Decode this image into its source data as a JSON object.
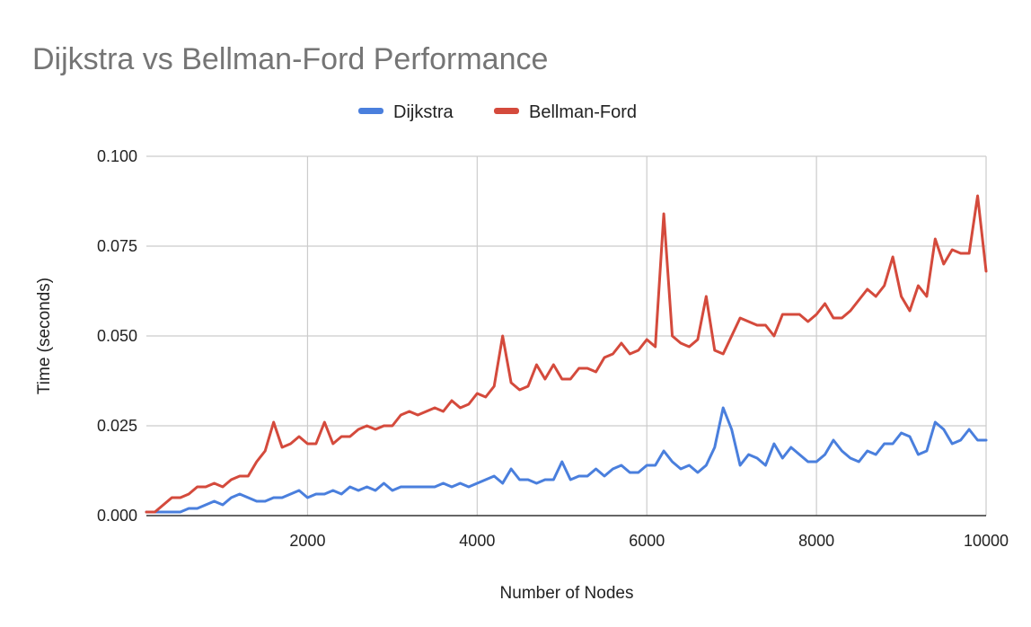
{
  "chart_data": {
    "type": "line",
    "title": "Dijkstra vs Bellman-Ford Performance",
    "xlabel": "Number of Nodes",
    "ylabel": "Time (seconds)",
    "xlim": [
      100,
      10000
    ],
    "ylim": [
      0,
      0.1
    ],
    "xticks": [
      2000,
      4000,
      6000,
      8000,
      10000
    ],
    "xtick_labels": [
      "2000",
      "4000",
      "6000",
      "8000",
      "10000"
    ],
    "yticks": [
      0,
      0.025,
      0.05,
      0.075,
      0.1
    ],
    "ytick_labels": [
      "0.000",
      "0.025",
      "0.050",
      "0.075",
      "0.100"
    ],
    "grid": true,
    "legend_position": "top-center",
    "x": [
      100,
      200,
      300,
      400,
      500,
      600,
      700,
      800,
      900,
      1000,
      1100,
      1200,
      1300,
      1400,
      1500,
      1600,
      1700,
      1800,
      1900,
      2000,
      2100,
      2200,
      2300,
      2400,
      2500,
      2600,
      2700,
      2800,
      2900,
      3000,
      3100,
      3200,
      3300,
      3400,
      3500,
      3600,
      3700,
      3800,
      3900,
      4000,
      4100,
      4200,
      4300,
      4400,
      4500,
      4600,
      4700,
      4800,
      4900,
      5000,
      5100,
      5200,
      5300,
      5400,
      5500,
      5600,
      5700,
      5800,
      5900,
      6000,
      6100,
      6200,
      6300,
      6400,
      6500,
      6600,
      6700,
      6800,
      6900,
      7000,
      7100,
      7200,
      7300,
      7400,
      7500,
      7600,
      7700,
      7800,
      7900,
      8000,
      8100,
      8200,
      8300,
      8400,
      8500,
      8600,
      8700,
      8800,
      8900,
      9000,
      9100,
      9200,
      9300,
      9400,
      9500,
      9600,
      9700,
      9800,
      9900,
      10000
    ],
    "series": [
      {
        "name": "Dijkstra",
        "color": "#4a7fdd",
        "values": [
          0.001,
          0.001,
          0.001,
          0.001,
          0.001,
          0.002,
          0.002,
          0.003,
          0.004,
          0.003,
          0.005,
          0.006,
          0.005,
          0.004,
          0.004,
          0.005,
          0.005,
          0.006,
          0.007,
          0.005,
          0.006,
          0.006,
          0.007,
          0.006,
          0.008,
          0.007,
          0.008,
          0.007,
          0.009,
          0.007,
          0.008,
          0.008,
          0.008,
          0.008,
          0.008,
          0.009,
          0.008,
          0.009,
          0.008,
          0.009,
          0.01,
          0.011,
          0.009,
          0.013,
          0.01,
          0.01,
          0.009,
          0.01,
          0.01,
          0.015,
          0.01,
          0.011,
          0.011,
          0.013,
          0.011,
          0.013,
          0.014,
          0.012,
          0.012,
          0.014,
          0.014,
          0.018,
          0.015,
          0.013,
          0.014,
          0.012,
          0.014,
          0.019,
          0.03,
          0.024,
          0.014,
          0.017,
          0.016,
          0.014,
          0.02,
          0.016,
          0.019,
          0.017,
          0.015,
          0.015,
          0.017,
          0.021,
          0.018,
          0.016,
          0.015,
          0.018,
          0.017,
          0.02,
          0.02,
          0.023,
          0.022,
          0.017,
          0.018,
          0.026,
          0.024,
          0.02,
          0.021,
          0.024,
          0.021,
          0.021
        ]
      },
      {
        "name": "Bellman-Ford",
        "color": "#d44a3c",
        "values": [
          0.001,
          0.001,
          0.003,
          0.005,
          0.005,
          0.006,
          0.008,
          0.008,
          0.009,
          0.008,
          0.01,
          0.011,
          0.011,
          0.015,
          0.018,
          0.026,
          0.019,
          0.02,
          0.022,
          0.02,
          0.02,
          0.026,
          0.02,
          0.022,
          0.022,
          0.024,
          0.025,
          0.024,
          0.025,
          0.025,
          0.028,
          0.029,
          0.028,
          0.029,
          0.03,
          0.029,
          0.032,
          0.03,
          0.031,
          0.034,
          0.033,
          0.036,
          0.05,
          0.037,
          0.035,
          0.036,
          0.042,
          0.038,
          0.042,
          0.038,
          0.038,
          0.041,
          0.041,
          0.04,
          0.044,
          0.045,
          0.048,
          0.045,
          0.046,
          0.049,
          0.047,
          0.084,
          0.05,
          0.048,
          0.047,
          0.049,
          0.061,
          0.046,
          0.045,
          0.05,
          0.055,
          0.054,
          0.053,
          0.053,
          0.05,
          0.056,
          0.056,
          0.056,
          0.054,
          0.056,
          0.059,
          0.055,
          0.055,
          0.057,
          0.06,
          0.063,
          0.061,
          0.064,
          0.072,
          0.061,
          0.057,
          0.064,
          0.061,
          0.077,
          0.07,
          0.074,
          0.073,
          0.073,
          0.089,
          0.068
        ]
      }
    ]
  }
}
